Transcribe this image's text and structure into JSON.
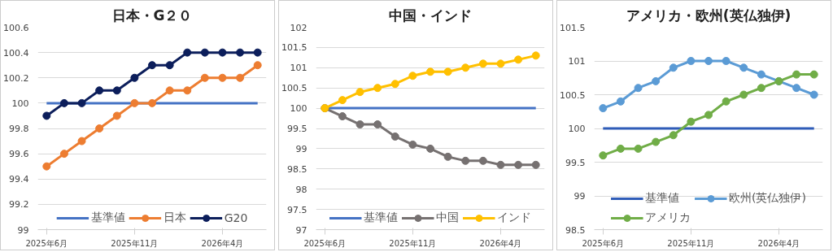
{
  "chart_data": [
    {
      "type": "line",
      "title": "日本・G２０",
      "categories": [
        "2025年6月",
        null,
        null,
        null,
        null,
        "2025年11月",
        null,
        null,
        null,
        null,
        "2026年4月",
        null,
        null
      ],
      "ylim": [
        99,
        100.6
      ],
      "yticks": [
        99,
        99.2,
        99.4,
        99.6,
        99.8,
        100,
        100.2,
        100.4,
        100.6
      ],
      "grid": "y",
      "legend": "bottom",
      "series": [
        {
          "name": "基準値",
          "color": "#4472c4",
          "marker": "none",
          "values": [
            100,
            100,
            100,
            100,
            100,
            100,
            100,
            100,
            100,
            100,
            100,
            100,
            100
          ]
        },
        {
          "name": "日本",
          "color": "#ed7d31",
          "marker": "circle",
          "values": [
            99.5,
            99.6,
            99.7,
            99.8,
            99.9,
            100,
            100,
            100.1,
            100.1,
            100.2,
            100.2,
            100.2,
            100.3
          ]
        },
        {
          "name": "G20",
          "color": "#0c1e5b",
          "marker": "circle",
          "values": [
            99.9,
            100,
            100,
            100.1,
            100.1,
            100.2,
            100.3,
            100.3,
            100.4,
            100.4,
            100.4,
            100.4,
            100.4
          ]
        }
      ]
    },
    {
      "type": "line",
      "title": "中国・インド",
      "categories": [
        "2025年6月",
        null,
        null,
        null,
        null,
        "2025年11月",
        null,
        null,
        null,
        null,
        "2026年4月",
        null,
        null
      ],
      "ylim": [
        97,
        102
      ],
      "yticks": [
        97,
        97.5,
        98,
        98.5,
        99,
        99.5,
        100,
        100.5,
        101,
        101.5,
        102
      ],
      "grid": "y",
      "legend": "bottom",
      "series": [
        {
          "name": "基準値",
          "color": "#4472c4",
          "marker": "none",
          "values": [
            100,
            100,
            100,
            100,
            100,
            100,
            100,
            100,
            100,
            100,
            100,
            100,
            100
          ]
        },
        {
          "name": "中国",
          "color": "#767171",
          "marker": "circle",
          "values": [
            100,
            99.8,
            99.6,
            99.6,
            99.3,
            99.1,
            99.0,
            98.8,
            98.7,
            98.7,
            98.6,
            98.6,
            98.6
          ]
        },
        {
          "name": "インド",
          "color": "#ffc000",
          "marker": "circle",
          "values": [
            100,
            100.2,
            100.4,
            100.5,
            100.6,
            100.8,
            100.9,
            100.9,
            101.0,
            101.1,
            101.1,
            101.2,
            101.3
          ]
        }
      ]
    },
    {
      "type": "line",
      "title": "アメリカ・欧州(英仏独伊)",
      "categories": [
        "2025年6月",
        null,
        null,
        null,
        null,
        "2025年11月",
        null,
        null,
        null,
        null,
        "2026年4月",
        null,
        null
      ],
      "ylim": [
        98.5,
        101.5
      ],
      "yticks": [
        98.5,
        99,
        99.5,
        100,
        100.5,
        101,
        101.5
      ],
      "grid": "y",
      "legend": "bottom",
      "series": [
        {
          "name": "基準値",
          "color": "#2f5cb8",
          "marker": "none",
          "values": [
            100,
            100,
            100,
            100,
            100,
            100,
            100,
            100,
            100,
            100,
            100,
            100,
            100
          ]
        },
        {
          "name": "欧州(英仏独伊)",
          "color": "#5b9bd5",
          "marker": "circle",
          "values": [
            100.3,
            100.4,
            100.6,
            100.7,
            100.9,
            101,
            101,
            101,
            100.9,
            100.8,
            100.7,
            100.6,
            100.5
          ]
        },
        {
          "name": "アメリカ",
          "color": "#70ad47",
          "marker": "circle",
          "values": [
            99.6,
            99.7,
            99.7,
            99.8,
            99.9,
            100.1,
            100.2,
            100.4,
            100.5,
            100.6,
            100.7,
            100.8,
            100.8
          ]
        }
      ]
    }
  ]
}
